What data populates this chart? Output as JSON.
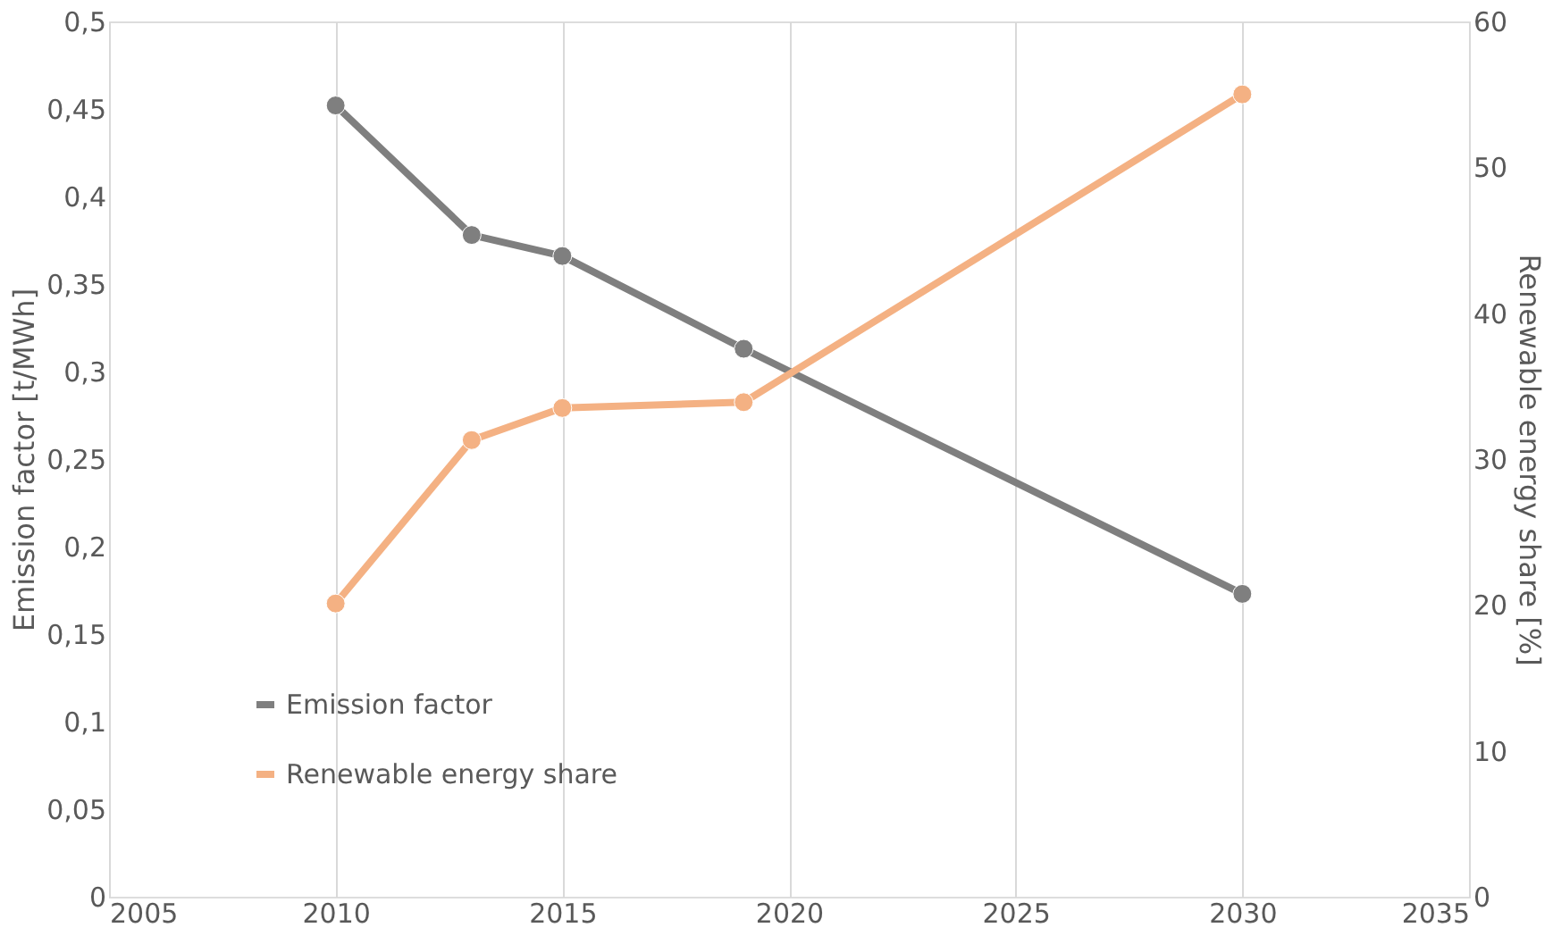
{
  "chart_data": {
    "type": "line",
    "ylabel": "Emission factor [t/MWh]",
    "y2label": "Renewable energy share [%]",
    "series": [
      {
        "name": "Emission factor",
        "color": "#7f7f7f",
        "x": [
          2010,
          2013,
          2015,
          2019,
          2030
        ],
        "values": [
          0.452,
          0.378,
          0.366,
          0.313,
          0.173
        ]
      },
      {
        "name": "Renewable energy share",
        "color": "#f4b183",
        "axis": "y2",
        "x": [
          2010,
          2013,
          2015,
          2019,
          2030
        ],
        "values": [
          20.1,
          31.3,
          33.5,
          33.9,
          55.0
        ]
      }
    ],
    "xlim": [
      2005,
      2035
    ],
    "xticks": [
      2005,
      2010,
      2015,
      2020,
      2025,
      2030,
      2035
    ],
    "ylim": [
      0,
      0.5
    ],
    "yticks": [
      0,
      {
        "value": 0.05,
        "label": "0,05"
      },
      {
        "value": 0.1,
        "label": "0,1"
      },
      {
        "value": 0.15,
        "label": "0,15"
      },
      {
        "value": 0.2,
        "label": "0,2"
      },
      {
        "value": 0.25,
        "label": "0,25"
      },
      {
        "value": 0.3,
        "label": "0,3"
      },
      {
        "value": 0.35,
        "label": "0,35"
      },
      {
        "value": 0.4,
        "label": "0,4"
      },
      {
        "value": 0.45,
        "label": "0,45"
      },
      {
        "value": 0.5,
        "label": "0,5"
      }
    ],
    "y2lim": [
      0,
      60
    ],
    "y2ticks": [
      0,
      10,
      20,
      30,
      40,
      50,
      60
    ],
    "grid": "x",
    "legend": "bottom left",
    "marker": "circle",
    "line_style": "solid"
  }
}
